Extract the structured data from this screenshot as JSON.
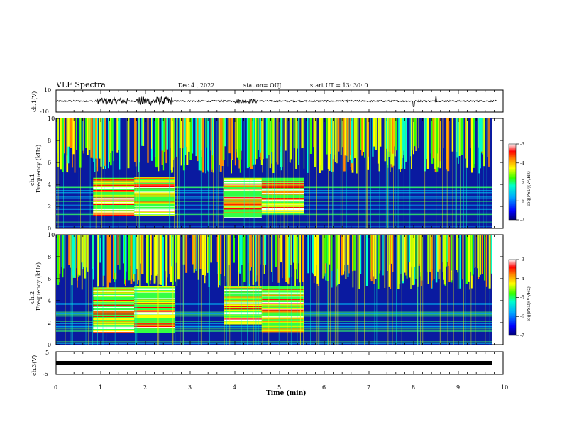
{
  "header": {
    "title": "VLF Spectra",
    "date": "Dec.4 , 2022",
    "station": "station= OUJ",
    "start": "start UT =  13: 30: 0"
  },
  "chart_data": [
    {
      "type": "line",
      "panel": "waveform-ch1",
      "ylabel": "ch.1(V)",
      "ylim": [
        -10,
        10
      ],
      "yticks": [
        "10",
        "-10"
      ],
      "xlim": [
        0,
        9.85
      ],
      "description_values": {
        "baseline": 0,
        "bursts": [
          {
            "t_start": 0.9,
            "t_end": 1.6,
            "amplitude": 3
          },
          {
            "t_start": 1.8,
            "t_end": 2.6,
            "amplitude": 4
          },
          {
            "t_start": 4.0,
            "t_end": 4.5,
            "amplitude": 2
          }
        ],
        "spikes": [
          {
            "t": 8.0,
            "amplitude": -5
          },
          {
            "t": 8.5,
            "amplitude": 4
          }
        ]
      }
    },
    {
      "type": "heatmap",
      "panel": "spectrogram-ch1",
      "ylabel": "ch.1\nFrequency (kHz)",
      "ylim": [
        0,
        10
      ],
      "yticks": [
        "0",
        "2",
        "4",
        "6",
        "8",
        "10"
      ],
      "xlim": [
        0,
        9.85
      ],
      "colorbar": {
        "label": "log(PSD)(V²/Hz)",
        "range": [
          -7,
          -3
        ],
        "ticks": [
          "-3",
          "-4",
          "-5",
          "-6",
          "-7"
        ]
      },
      "bands": [
        {
          "t_start": 0.83,
          "t_end": 1.75,
          "f_low": 1.2,
          "f_high": 4.6
        },
        {
          "t_start": 1.75,
          "t_end": 2.65,
          "f_low": 1.2,
          "f_high": 4.7
        },
        {
          "t_start": 3.75,
          "t_end": 4.6,
          "f_low": 1.0,
          "f_high": 4.6
        },
        {
          "t_start": 4.6,
          "t_end": 5.55,
          "f_low": 1.3,
          "f_high": 4.6
        }
      ]
    },
    {
      "type": "heatmap",
      "panel": "spectrogram-ch2",
      "ylabel": "ch.2\nFrequency (kHz)",
      "ylim": [
        0,
        10
      ],
      "yticks": [
        "0",
        "2",
        "4",
        "6",
        "8",
        "10"
      ],
      "xlim": [
        0,
        9.85
      ],
      "colorbar": {
        "label": "log(PSD)(V²/Hz)",
        "range": [
          -7,
          -3
        ],
        "ticks": [
          "-3",
          "-4",
          "-5",
          "-6",
          "-7"
        ]
      },
      "bands": [
        {
          "t_start": 0.83,
          "t_end": 1.75,
          "f_low": 1.1,
          "f_high": 5.2
        },
        {
          "t_start": 1.75,
          "t_end": 2.65,
          "f_low": 1.1,
          "f_high": 5.3
        },
        {
          "t_start": 3.75,
          "t_end": 4.6,
          "f_low": 1.8,
          "f_high": 5.3
        },
        {
          "t_start": 4.6,
          "t_end": 5.55,
          "f_low": 1.2,
          "f_high": 5.3
        }
      ]
    },
    {
      "type": "line",
      "panel": "waveform-ch3",
      "ylabel": "ch.3(V)",
      "ylim": [
        -5,
        5
      ],
      "yticks": [
        "5",
        "-5"
      ],
      "xlim": [
        0,
        9.85
      ],
      "description_values": {
        "baseline": -0.3
      }
    }
  ],
  "xaxis": {
    "label": "Time (min)",
    "ticks": [
      "0",
      "1",
      "2",
      "3",
      "4",
      "5",
      "6",
      "7",
      "8",
      "9",
      "10"
    ],
    "range": [
      0,
      10
    ]
  },
  "colors": {
    "colormap": [
      "#00006e",
      "#0000ff",
      "#00aaff",
      "#00ffcc",
      "#33ff00",
      "#ccff00",
      "#ffff00",
      "#ff8800",
      "#ff0000",
      "#ffffff"
    ]
  }
}
